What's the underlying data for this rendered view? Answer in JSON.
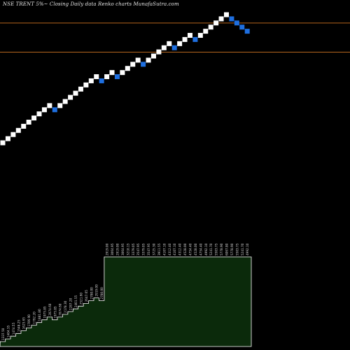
{
  "title": "NSE TRENT 5%~  Closing Daily data  Renko  charts MunafaSutra.com",
  "colors": {
    "background": "#000000",
    "brick_up": "#ffffff",
    "brick_down": "#1e6fe0",
    "reference_line": "#b5651d",
    "volume_fill": "#0b2a0b",
    "volume_stroke": "#ffffff"
  },
  "chart_data": {
    "type": "renko",
    "brick_percent": 5,
    "brick_values": [
      1337.5,
      1404.35,
      1474.55,
      1548.25,
      1625.65,
      1706.9,
      1792.2,
      1881.8,
      1975.85,
      2074.6,
      1975.85,
      2074.6,
      2178.3,
      2287.2,
      2401.55,
      2521.6,
      2647.65,
      2780.0,
      2919.0,
      2780.0,
      2919.0,
      3064.95,
      2919.0,
      3064.95,
      3218.15,
      3379.05,
      3547.95,
      3379.05,
      3547.95,
      3725.3,
      3911.55,
      4107.1,
      4312.4,
      4107.1,
      4312.4,
      4528.0,
      4754.4,
      4528.0,
      4754.4,
      4992.1,
      5241.7,
      5503.75,
      5778.9,
      6067.8,
      5778.9,
      5503.75,
      5241.7,
      4992.1
    ],
    "directions": [
      "up",
      "up",
      "up",
      "up",
      "up",
      "up",
      "up",
      "up",
      "up",
      "up",
      "down",
      "up",
      "up",
      "up",
      "up",
      "up",
      "up",
      "up",
      "up",
      "down",
      "up",
      "up",
      "down",
      "up",
      "up",
      "up",
      "up",
      "down",
      "up",
      "up",
      "up",
      "up",
      "up",
      "down",
      "up",
      "up",
      "up",
      "down",
      "up",
      "up",
      "up",
      "up",
      "up",
      "up",
      "down",
      "down",
      "down",
      "down"
    ],
    "reference_lines": [
      5500,
      3900
    ],
    "volume_labels": [
      "1337.50",
      "1404.35",
      "1474.55",
      "1548.25",
      "1625.65",
      "1706.90",
      "1792.20",
      "1881.80",
      "1975.85",
      "2074.60",
      "1975.85",
      "2074.60",
      "2178.30",
      "2287.20",
      "2401.55",
      "2521.60",
      "2647.65",
      "2780.00",
      "2919.00",
      "2780.00",
      "2919.00",
      "3064.95",
      "2919.00",
      "3064.95",
      "3218.15",
      "3379.05",
      "3547.95",
      "3379.05",
      "3547.95",
      "3725.30",
      "3911.55",
      "4107.10",
      "4312.40",
      "4107.10",
      "4312.40",
      "4528.00",
      "4754.40",
      "4528.00",
      "4754.40",
      "4992.10",
      "5241.70",
      "5503.75",
      "5778.90",
      "6067.80",
      "5778.90",
      "5503.75",
      "5241.70",
      "4992.10"
    ]
  }
}
